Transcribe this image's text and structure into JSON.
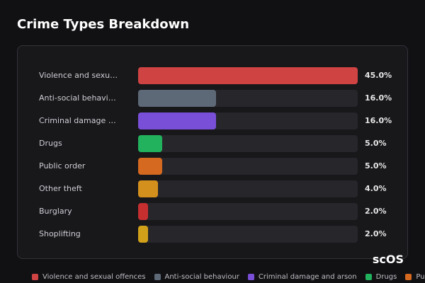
{
  "chart_data": {
    "type": "bar",
    "orientation": "horizontal",
    "title": "Crime Types Breakdown",
    "categories": [
      "Violence and sexual offences",
      "Anti-social behaviour",
      "Criminal damage and arson",
      "Drugs",
      "Public order",
      "Other theft",
      "Burglary",
      "Shoplifting"
    ],
    "values": [
      45,
      16,
      16,
      5,
      5,
      4,
      2,
      2
    ],
    "value_labels": [
      "45.0%",
      "16.0%",
      "16.0%",
      "5.0%",
      "5.0%",
      "4.0%",
      "2.0%",
      "2.0%"
    ],
    "colors": [
      "#d04343",
      "#5e6978",
      "#7a4fd8",
      "#22b15d",
      "#d4691f",
      "#d4901d",
      "#c52f2f",
      "#d1a11a"
    ],
    "xlim": [
      0,
      45
    ],
    "watermark": "scOS"
  }
}
